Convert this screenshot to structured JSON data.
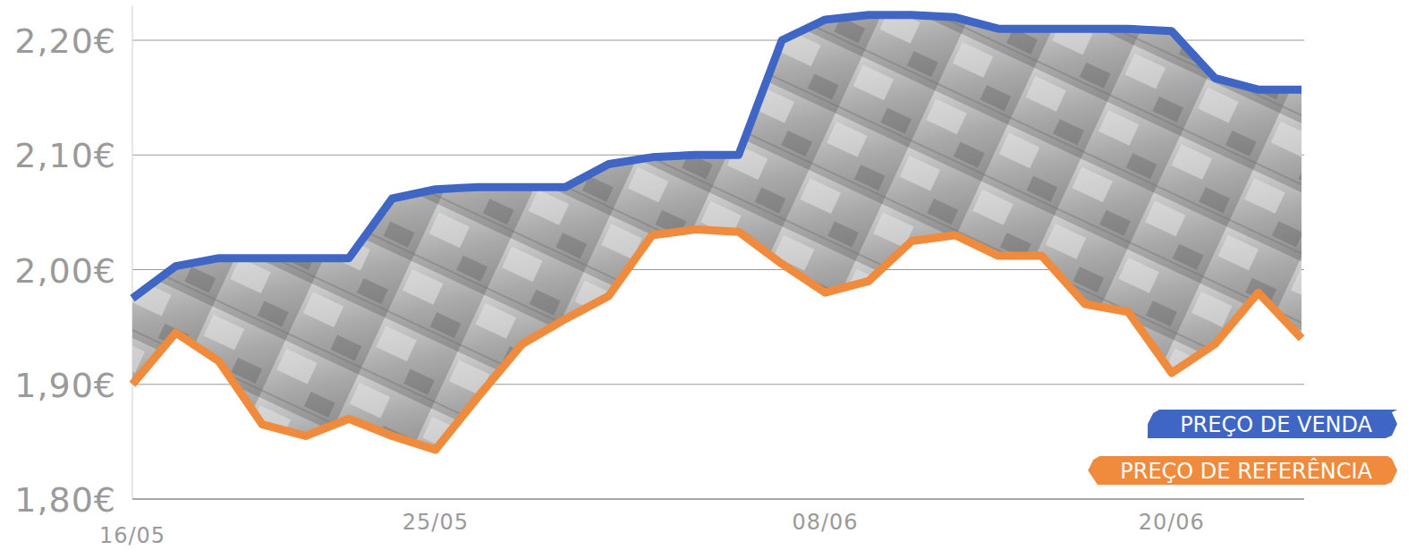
{
  "chart_data": {
    "type": "line",
    "categories": [
      "16/05",
      null,
      null,
      null,
      null,
      null,
      null,
      "25/05",
      null,
      null,
      null,
      null,
      null,
      null,
      null,
      null,
      "08/06",
      null,
      null,
      null,
      null,
      null,
      null,
      null,
      "20/06",
      null,
      null,
      null
    ],
    "series": [
      {
        "name": "PREÇO DE VENDA",
        "color": "#3f66c4",
        "values": [
          1.975,
          2.003,
          2.01,
          2.01,
          2.01,
          2.01,
          2.062,
          2.07,
          2.072,
          2.072,
          2.072,
          2.092,
          2.098,
          2.1,
          2.1,
          2.2,
          2.218,
          2.222,
          2.222,
          2.22,
          2.21,
          2.21,
          2.21,
          2.21,
          2.208,
          2.167,
          2.157,
          2.157
        ]
      },
      {
        "name": "PREÇO DE REFERÊNCIA",
        "color": "#f08a3c",
        "values": [
          1.9,
          1.945,
          1.92,
          1.865,
          1.855,
          1.87,
          1.855,
          1.843,
          1.89,
          1.935,
          1.957,
          1.977,
          2.03,
          2.035,
          2.033,
          2.005,
          1.98,
          1.99,
          2.025,
          2.03,
          2.012,
          2.012,
          1.97,
          1.963,
          1.91,
          1.935,
          1.98,
          1.94
        ]
      }
    ],
    "ylim": [
      1.8,
      2.23
    ],
    "yticks": [
      {
        "value": 1.8,
        "label": "1,80€"
      },
      {
        "value": 1.9,
        "label": "1,90€"
      },
      {
        "value": 2.0,
        "label": "2,00€"
      },
      {
        "value": 2.1,
        "label": "2,10€"
      },
      {
        "value": 2.2,
        "label": "2,20€"
      }
    ],
    "grid": true,
    "legend": "bottom-right"
  }
}
